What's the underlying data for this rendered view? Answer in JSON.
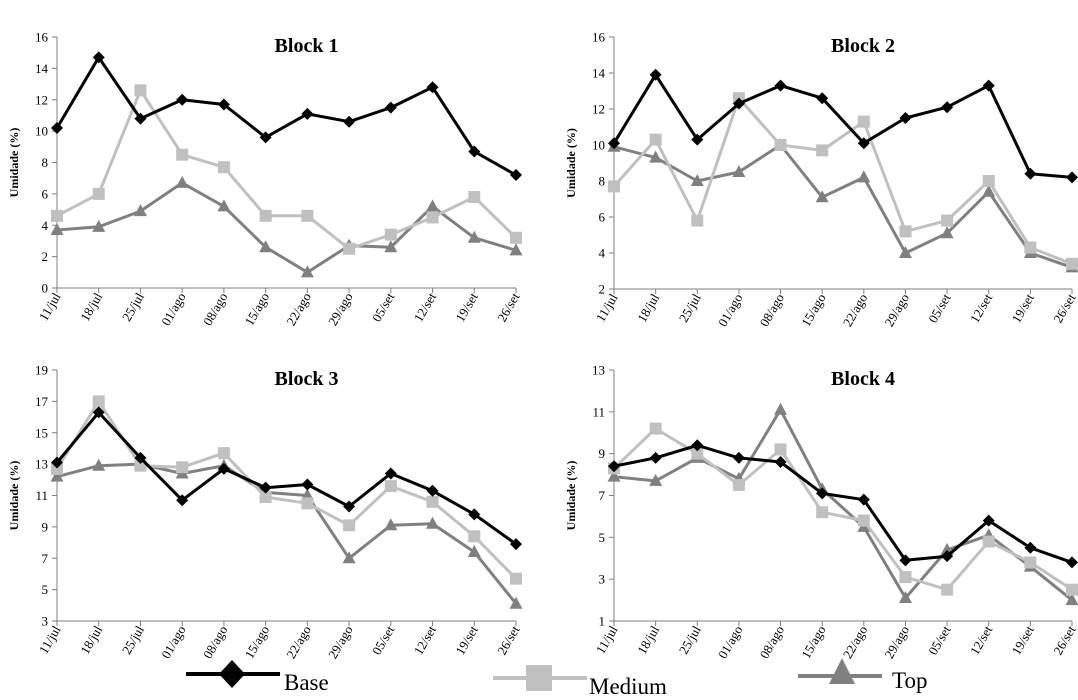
{
  "chart_data": [
    {
      "type": "line",
      "title": "Block 1",
      "ylabel": "Umidade (%)",
      "ylim": [
        0,
        16
      ],
      "yticks": [
        0,
        2,
        4,
        6,
        8,
        10,
        12,
        14,
        16
      ],
      "categories": [
        "11/jul",
        "18/jul",
        "25/jul",
        "01/ago",
        "08/ago",
        "15/ago",
        "22/ago",
        "29/ago",
        "05/set",
        "12/set",
        "19/set",
        "26/set"
      ],
      "series": [
        {
          "name": "Base",
          "values": [
            10.2,
            14.7,
            10.8,
            12.0,
            11.7,
            9.6,
            11.1,
            10.6,
            11.5,
            12.8,
            8.7,
            7.2
          ]
        },
        {
          "name": "Medium",
          "values": [
            4.6,
            6.0,
            12.6,
            8.5,
            7.7,
            4.6,
            4.6,
            2.5,
            3.4,
            4.5,
            5.8,
            3.2
          ]
        },
        {
          "name": "Top",
          "values": [
            3.7,
            3.9,
            4.9,
            6.7,
            5.2,
            2.6,
            1.0,
            2.7,
            2.6,
            5.2,
            3.2,
            2.4
          ]
        }
      ]
    },
    {
      "type": "line",
      "title": "Block 2",
      "ylabel": "Umidade (%)",
      "ylim": [
        2,
        16
      ],
      "yticks": [
        2,
        4,
        6,
        8,
        10,
        12,
        14,
        16
      ],
      "categories": [
        "11/jul",
        "18/jul",
        "25/jul",
        "01/ago",
        "08/ago",
        "15/ago",
        "22/ago",
        "29/ago",
        "05/set",
        "12/set",
        "19/set",
        "26/set"
      ],
      "series": [
        {
          "name": "Base",
          "values": [
            10.1,
            13.9,
            10.3,
            12.3,
            13.3,
            12.6,
            10.1,
            11.5,
            12.1,
            13.3,
            8.4,
            8.2
          ]
        },
        {
          "name": "Medium",
          "values": [
            7.7,
            10.3,
            5.8,
            12.6,
            10.0,
            9.7,
            11.3,
            5.2,
            5.8,
            8.0,
            4.3,
            3.4
          ]
        },
        {
          "name": "Top",
          "values": [
            9.9,
            9.3,
            8.0,
            8.5,
            10.0,
            7.1,
            8.2,
            4.0,
            5.1,
            7.4,
            4.0,
            3.2
          ]
        }
      ]
    },
    {
      "type": "line",
      "title": "Block 3",
      "ylabel": "Umidade (%)",
      "ylim": [
        3,
        19
      ],
      "yticks": [
        3,
        5,
        7,
        9,
        11,
        13,
        15,
        17,
        19
      ],
      "categories": [
        "11/jul",
        "18/jul",
        "25/jul",
        "01/ago",
        "08/ago",
        "15/ago",
        "22/ago",
        "29/ago",
        "05/set",
        "12/set",
        "19/set",
        "26/set"
      ],
      "series": [
        {
          "name": "Base",
          "values": [
            13.1,
            16.3,
            13.4,
            10.7,
            12.7,
            11.5,
            11.7,
            10.3,
            12.4,
            11.3,
            9.8,
            7.9
          ]
        },
        {
          "name": "Medium",
          "values": [
            12.7,
            17.0,
            12.9,
            12.8,
            13.7,
            10.9,
            10.5,
            9.1,
            11.6,
            10.6,
            8.4,
            5.7
          ]
        },
        {
          "name": "Top",
          "values": [
            12.2,
            12.9,
            13.0,
            12.4,
            12.9,
            11.2,
            11.0,
            7.0,
            9.1,
            9.2,
            7.4,
            4.1
          ]
        }
      ]
    },
    {
      "type": "line",
      "title": "Block 4",
      "ylabel": "Umidade (%)",
      "ylim": [
        1,
        13
      ],
      "yticks": [
        1,
        3,
        5,
        7,
        9,
        11,
        13
      ],
      "categories": [
        "11/jul",
        "18/jul",
        "25/jul",
        "01/ago",
        "08/ago",
        "15/ago",
        "22/ago",
        "29/ago",
        "05/set",
        "12/set",
        "19/set",
        "26/set"
      ],
      "series": [
        {
          "name": "Base",
          "values": [
            8.4,
            8.8,
            9.4,
            8.8,
            8.6,
            7.1,
            6.8,
            3.9,
            4.1,
            5.8,
            4.5,
            3.8
          ]
        },
        {
          "name": "Medium",
          "values": [
            8.3,
            10.2,
            9.0,
            7.5,
            9.2,
            6.2,
            5.8,
            3.1,
            2.5,
            4.8,
            3.8,
            2.5
          ]
        },
        {
          "name": "Top",
          "values": [
            7.9,
            7.7,
            8.8,
            7.8,
            11.1,
            7.3,
            5.5,
            2.1,
            4.4,
            5.1,
            3.6,
            2.0
          ]
        }
      ]
    }
  ],
  "legend": [
    {
      "label": "Base",
      "color": "#000000",
      "marker": "diamond"
    },
    {
      "label": "Medium",
      "color": "#c0c0c0",
      "marker": "square"
    },
    {
      "label": "Top",
      "color": "#808080",
      "marker": "triangle"
    }
  ],
  "series_styles": {
    "Base": {
      "color": "#000000",
      "marker": "diamond"
    },
    "Medium": {
      "color": "#c0c0c0",
      "marker": "square"
    },
    "Top": {
      "color": "#808080",
      "marker": "triangle"
    }
  }
}
